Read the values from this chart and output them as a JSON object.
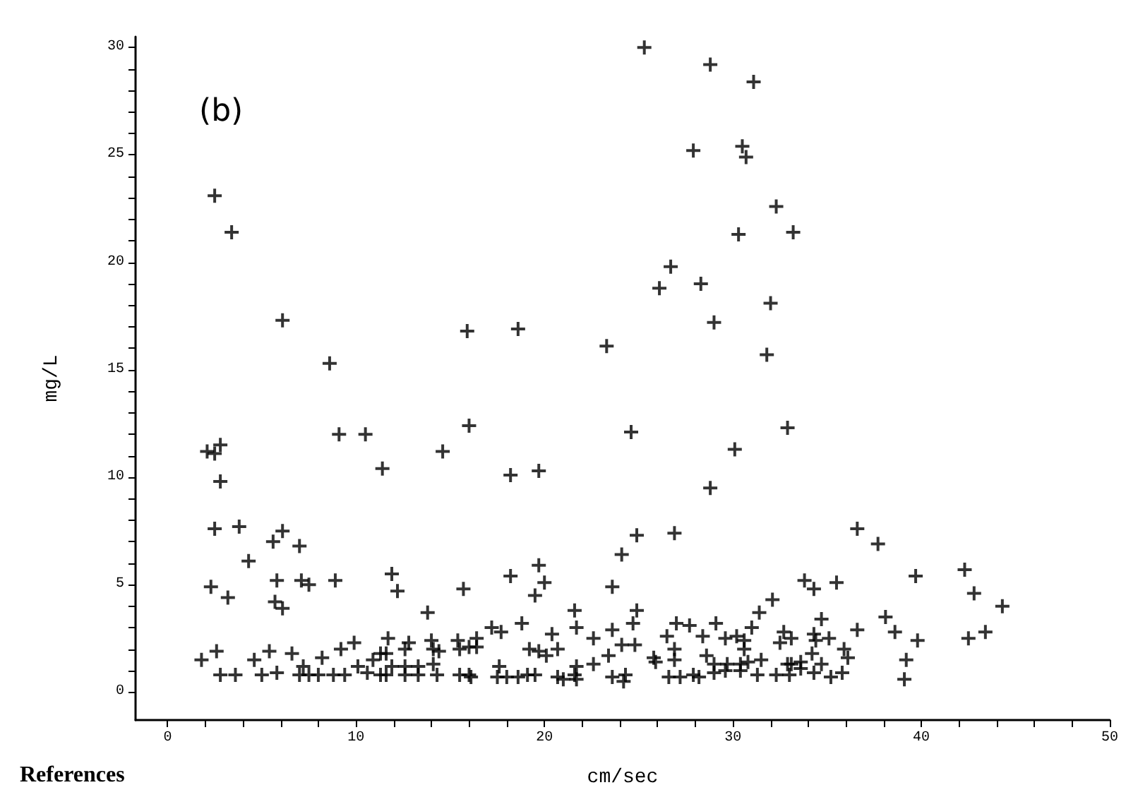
{
  "chart_data": {
    "type": "scatter",
    "xlabel": "cm/sec",
    "ylabel": "mg/L",
    "annotations": [
      "(b)",
      "References"
    ],
    "marker": "cross",
    "grid": false,
    "xlim": [
      -1.7,
      50
    ],
    "ylim": [
      -1.3,
      30.5
    ],
    "xticks": [
      0,
      {
        "value": 2,
        "label": null
      },
      {
        "value": 4,
        "label": null
      },
      {
        "value": 6,
        "label": null
      },
      {
        "value": 8,
        "label": null
      },
      10,
      {
        "value": 12,
        "label": null
      },
      {
        "value": 14,
        "label": null
      },
      {
        "value": 16,
        "label": null
      },
      {
        "value": 18,
        "label": null
      },
      20,
      {
        "value": 22,
        "label": null
      },
      {
        "value": 24,
        "label": null
      },
      {
        "value": 26,
        "label": null
      },
      {
        "value": 28,
        "label": null
      },
      30,
      {
        "value": 32,
        "label": null
      },
      {
        "value": 34,
        "label": null
      },
      {
        "value": 36,
        "label": null
      },
      {
        "value": 38,
        "label": null
      },
      40,
      {
        "value": 42,
        "label": null
      },
      {
        "value": 44,
        "label": null
      },
      {
        "value": 46,
        "label": null
      },
      {
        "value": 48,
        "label": null
      },
      50
    ],
    "yticks": [
      0,
      {
        "value": 1,
        "label": null
      },
      {
        "value": 2,
        "label": null
      },
      {
        "value": 3,
        "label": null
      },
      {
        "value": 4,
        "label": null
      },
      5,
      {
        "value": 6,
        "label": null
      },
      {
        "value": 7,
        "label": null
      },
      {
        "value": 8,
        "label": null
      },
      {
        "value": 9,
        "label": null
      },
      10,
      {
        "value": 11,
        "label": null
      },
      {
        "value": 12,
        "label": null
      },
      {
        "value": 13,
        "label": null
      },
      {
        "value": 14,
        "label": null
      },
      15,
      {
        "value": 16,
        "label": null
      },
      {
        "value": 17,
        "label": null
      },
      {
        "value": 18,
        "label": null
      },
      {
        "value": 19,
        "label": null
      },
      20,
      {
        "value": 21,
        "label": null
      },
      {
        "value": 22,
        "label": null
      },
      {
        "value": 23,
        "label": null
      },
      {
        "value": 24,
        "label": null
      },
      25,
      {
        "value": 26,
        "label": null
      },
      {
        "value": 27,
        "label": null
      },
      {
        "value": 28,
        "label": null
      },
      {
        "value": 29,
        "label": null
      },
      30
    ],
    "series": [
      {
        "color": "#000000",
        "x": [
          2.5,
          3.4,
          6.1,
          8.6,
          15.9,
          25.3,
          28.8,
          31.1,
          27.9,
          30.5,
          30.7,
          32.3,
          30.3,
          33.2,
          26.7,
          26.1,
          28.3,
          32.0,
          29.0,
          31.8,
          18.6,
          23.3,
          2.1,
          2.5,
          2.8,
          2.8,
          9.1,
          10.5,
          11.4,
          14.6,
          16.0,
          2.5,
          3.8,
          5.6,
          6.1,
          7.0,
          4.3,
          2.3,
          3.2,
          5.8,
          7.1,
          7.5,
          8.9,
          5.7,
          6.1,
          11.9,
          12.2,
          13.8,
          15.7,
          1.8,
          2.6,
          2.8,
          3.6,
          4.6,
          5.4,
          5.0,
          5.8,
          6.6,
          7.2,
          7.0,
          7.5,
          8.0,
          8.8,
          9.4,
          8.2,
          9.2,
          9.9,
          10.1,
          10.6,
          10.9,
          11.3,
          11.6,
          11.7,
          11.3,
          11.6,
          11.9,
          12.8,
          12.6,
          12.6,
          12.6,
          13.3,
          13.3,
          14.0,
          14.1,
          14.4,
          14.1,
          14.3,
          15.4,
          15.5,
          16.0,
          15.5,
          16.0,
          24.6,
          32.9,
          30.1,
          18.2,
          19.7,
          28.8,
          24.9,
          26.9,
          24.1,
          18.2,
          19.7,
          20.0,
          19.5,
          23.6,
          32.1,
          31.4,
          21.6,
          24.9,
          24.7,
          18.8,
          17.2,
          17.7,
          16.4,
          16.4,
          21.7,
          20.4,
          22.6,
          23.6,
          24.1,
          24.8,
          27.0,
          27.7,
          29.1,
          28.4,
          26.5,
          29.6,
          30.2,
          30.6,
          31.0,
          32.7,
          33.1,
          32.5,
          19.2,
          19.7,
          20.1,
          20.7,
          23.4,
          25.8,
          26.9,
          26.9,
          25.9,
          28.6,
          29.0,
          30.6,
          31.5,
          29.7,
          30.4,
          30.8,
          22.6,
          21.7,
          17.6,
          16.1,
          17.5,
          18.0,
          18.6,
          19.1,
          19.5,
          20.7,
          21.0,
          21.6,
          21.7,
          23.6,
          24.3,
          24.2,
          26.6,
          27.2,
          27.9,
          28.2,
          29.0,
          29.6,
          30.4,
          31.3,
          32.3,
          33.0,
          32.9,
          36.6,
          37.7,
          33.8,
          34.3,
          35.5,
          39.7,
          42.3,
          42.8,
          44.3,
          42.5,
          43.4,
          34.7,
          36.6,
          38.1,
          38.6,
          39.8,
          39.2,
          39.1,
          34.3,
          34.4,
          35.1,
          35.9,
          36.1,
          34.2,
          34.7,
          33.1,
          33.6,
          34.3,
          35.2,
          35.8,
          33.6
        ],
        "values": [
          23.1,
          21.4,
          17.3,
          15.3,
          16.8,
          30.0,
          29.2,
          28.4,
          25.2,
          25.4,
          24.9,
          22.6,
          21.3,
          21.4,
          19.8,
          18.8,
          19.0,
          18.1,
          17.2,
          15.7,
          16.9,
          16.1,
          11.2,
          11.1,
          11.5,
          9.8,
          12.0,
          12.0,
          10.4,
          11.2,
          12.4,
          7.6,
          7.7,
          7.0,
          7.5,
          6.8,
          6.1,
          4.9,
          4.4,
          5.2,
          5.2,
          5.0,
          5.2,
          4.2,
          3.9,
          5.5,
          4.7,
          3.7,
          4.8,
          1.5,
          1.9,
          0.8,
          0.8,
          1.5,
          1.9,
          0.8,
          0.9,
          1.8,
          1.2,
          0.8,
          0.8,
          0.8,
          0.8,
          0.8,
          1.6,
          2.0,
          2.3,
          1.2,
          0.9,
          1.5,
          1.8,
          1.8,
          2.5,
          0.8,
          0.8,
          1.2,
          2.3,
          2.0,
          1.2,
          0.8,
          1.2,
          0.8,
          2.4,
          2.0,
          1.9,
          1.3,
          0.8,
          2.4,
          2.0,
          2.1,
          0.8,
          0.8,
          12.1,
          12.3,
          11.3,
          10.1,
          10.3,
          9.5,
          7.3,
          7.4,
          6.4,
          5.4,
          5.9,
          5.1,
          4.5,
          4.9,
          4.3,
          3.7,
          3.8,
          3.8,
          3.2,
          3.2,
          3.0,
          2.8,
          2.5,
          2.1,
          3.0,
          2.7,
          2.5,
          2.9,
          2.2,
          2.2,
          3.2,
          3.1,
          3.2,
          2.6,
          2.6,
          2.5,
          2.6,
          2.4,
          3.0,
          2.8,
          2.5,
          2.3,
          2.0,
          1.9,
          1.7,
          2.0,
          1.7,
          1.6,
          2.0,
          1.5,
          1.4,
          1.7,
          1.3,
          2.0,
          1.5,
          1.3,
          1.3,
          1.4,
          1.3,
          1.2,
          1.2,
          0.7,
          0.7,
          0.7,
          0.7,
          0.8,
          0.8,
          0.7,
          0.6,
          0.8,
          0.6,
          0.7,
          0.8,
          0.5,
          0.7,
          0.7,
          0.8,
          0.7,
          0.9,
          1.0,
          1.0,
          0.8,
          0.8,
          0.8,
          1.3,
          7.6,
          6.9,
          5.2,
          4.8,
          5.1,
          5.4,
          5.7,
          4.6,
          4.0,
          2.5,
          2.8,
          3.4,
          2.9,
          3.5,
          2.8,
          2.4,
          1.5,
          0.6,
          2.7,
          2.4,
          2.5,
          2.0,
          1.6,
          1.8,
          1.3,
          1.3,
          1.1,
          0.9,
          0.7,
          0.9,
          1.4
        ]
      }
    ]
  }
}
